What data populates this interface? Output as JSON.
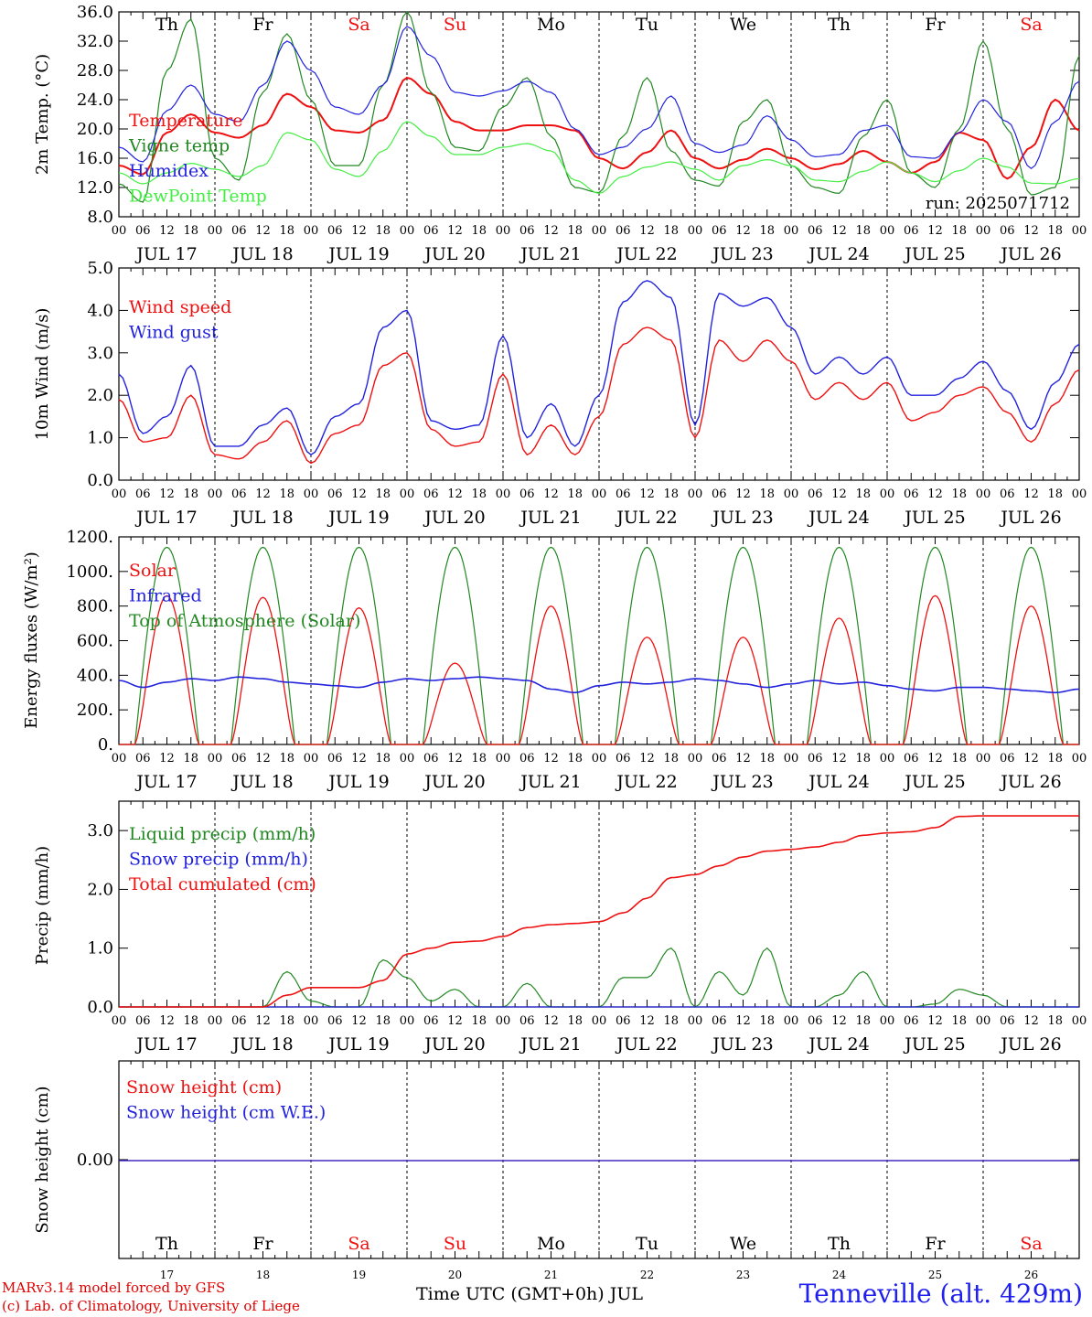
{
  "chart_data": [
    {
      "type": "line",
      "ylabel": "2m Temp. (°C)",
      "ylim": [
        8,
        36
      ],
      "yticks": [
        "8.0",
        "12.0",
        "16.0",
        "20.0",
        "24.0",
        "28.0",
        "32.0",
        "36.0"
      ],
      "annotation": "run: 2025071712",
      "series": [
        {
          "name": "Temperature",
          "color": "#ee1111",
          "step_hours": 6,
          "values": [
            15,
            13.8,
            19.5,
            22,
            19.5,
            18.8,
            20.5,
            24.8,
            23,
            19.8,
            19.5,
            21.2,
            27,
            24.8,
            21,
            19.8,
            19.8,
            20.5,
            20.5,
            19.8,
            16,
            14.6,
            16.8,
            19.8,
            16,
            14.6,
            15.8,
            17.3,
            16,
            14.5,
            15.2,
            17,
            15.5,
            14,
            15.5,
            19.5,
            18.5,
            13.2,
            17.5,
            24,
            19.8,
            16.8,
            16.8,
            21,
            17,
            14.2
          ]
        },
        {
          "name": "Vigne temp",
          "color": "#228822",
          "step_hours": 6,
          "values": [
            12.5,
            10,
            28,
            35,
            16,
            13,
            25,
            33,
            24,
            15,
            15,
            26,
            36,
            25,
            17.5,
            17,
            23,
            27,
            19,
            12,
            11.3,
            19,
            27,
            17,
            13,
            12.2,
            21,
            24,
            15,
            12,
            11.2,
            19,
            24,
            14,
            12,
            20,
            32,
            20,
            11,
            12,
            30,
            36,
            18,
            15,
            32,
            29,
            10
          ]
        },
        {
          "name": "Humidex",
          "color": "#2222dd",
          "step_hours": 6,
          "values": [
            17.5,
            15.5,
            22.5,
            26,
            22,
            21,
            26,
            32,
            28,
            23,
            22,
            26,
            34,
            30,
            25,
            24.5,
            25.2,
            26.5,
            25,
            20,
            16.5,
            17.5,
            20,
            24.5,
            18,
            16.8,
            17.8,
            21.8,
            18.5,
            16.2,
            16.5,
            19.8,
            20.5,
            16.2,
            16,
            19.5,
            24,
            21,
            14.6,
            21,
            26.5,
            24,
            19.5,
            19.5,
            24,
            20.5,
            15
          ]
        },
        {
          "name": "DewPoint Temp",
          "color": "#44ee44",
          "step_hours": 6,
          "values": [
            14,
            12.5,
            14,
            15.3,
            14.5,
            13.5,
            15,
            19.5,
            18.5,
            14.5,
            13.5,
            17,
            21,
            19,
            16.5,
            16.5,
            17.5,
            18,
            17,
            13,
            11.2,
            13.5,
            14.8,
            15.5,
            14.5,
            13,
            15,
            15.8,
            15,
            13,
            12.8,
            14.2,
            15.5,
            14,
            12.8,
            14.3,
            16,
            14.8,
            12.6,
            12.5,
            13.2,
            13,
            12.8,
            14.5,
            15,
            14,
            11
          ]
        }
      ]
    },
    {
      "type": "line",
      "ylabel": "10m Wind (m/s)",
      "ylim": [
        0,
        5
      ],
      "yticks": [
        "0.0",
        "1.0",
        "2.0",
        "3.0",
        "4.0",
        "5.0"
      ],
      "series": [
        {
          "name": "Wind speed",
          "color": "#ee1111",
          "step_hours": 6,
          "values": [
            1.9,
            0.9,
            1.0,
            2.0,
            0.6,
            0.5,
            0.9,
            1.4,
            0.4,
            1.1,
            1.3,
            2.7,
            3.0,
            1.2,
            0.8,
            0.9,
            2.5,
            0.6,
            1.3,
            0.6,
            1.5,
            3.2,
            3.6,
            3.3,
            1.0,
            3.3,
            2.8,
            3.3,
            2.8,
            1.9,
            2.3,
            1.9,
            2.3,
            1.4,
            1.6,
            2.0,
            2.2,
            1.6,
            0.9,
            1.8,
            2.6,
            2.3,
            1.8,
            2.5,
            2.9,
            1.6,
            1.2
          ]
        },
        {
          "name": "Wind gust",
          "color": "#2222dd",
          "step_hours": 6,
          "values": [
            2.5,
            1.1,
            1.5,
            2.7,
            0.8,
            0.8,
            1.3,
            1.7,
            0.6,
            1.5,
            1.8,
            3.6,
            4.0,
            1.4,
            1.2,
            1.3,
            3.4,
            1.0,
            1.8,
            0.8,
            2.0,
            4.2,
            4.7,
            4.3,
            1.3,
            4.4,
            4.1,
            4.3,
            3.6,
            2.5,
            2.9,
            2.5,
            2.9,
            2.0,
            2.0,
            2.4,
            2.8,
            2.1,
            1.2,
            2.3,
            3.2,
            3.1,
            2.6,
            3.2,
            3.6,
            2.1,
            1.6
          ]
        }
      ]
    },
    {
      "type": "line",
      "ylabel": "Energy fluxes (W/m²)",
      "ylim": [
        0,
        1200
      ],
      "yticks": [
        "0.",
        "200.",
        "400.",
        "600.",
        "800.",
        "1000.",
        "1200."
      ],
      "series": [
        {
          "name": "Solar",
          "color": "#ee1111",
          "peak_values": [
            860,
            850,
            790,
            470,
            800,
            620,
            620,
            730,
            860,
            800
          ]
        },
        {
          "name": "Infrared",
          "color": "#2222dd",
          "step_hours": 6,
          "values": [
            370,
            330,
            360,
            380,
            370,
            390,
            380,
            360,
            350,
            340,
            330,
            360,
            380,
            370,
            380,
            390,
            380,
            370,
            320,
            300,
            340,
            360,
            350,
            360,
            380,
            370,
            350,
            330,
            350,
            370,
            350,
            360,
            340,
            320,
            310,
            330,
            330,
            320,
            310,
            300,
            320,
            330,
            330,
            340,
            380,
            350,
            300
          ]
        },
        {
          "name": "Top of Atmosphere (Solar)",
          "color": "#228822",
          "peak": 1140,
          "sunrise_hour": 4,
          "sunset_hour": 20
        }
      ]
    },
    {
      "type": "line",
      "ylabel": "Precip (mm/h)",
      "ylim": [
        0,
        3.5
      ],
      "yticks": [
        "0.0",
        "1.0",
        "2.0",
        "3.0"
      ],
      "series": [
        {
          "name": "Liquid precip (mm/h)",
          "color": "#228822",
          "step_hours": 6,
          "values": [
            0,
            0,
            0,
            0,
            0,
            0,
            0,
            0.6,
            0.1,
            0,
            0,
            0.8,
            0.5,
            0.1,
            0.3,
            0,
            0,
            0.4,
            0,
            0,
            0,
            0.5,
            0.5,
            1.0,
            0,
            0.6,
            0.2,
            1.0,
            0,
            0,
            0.2,
            0.6,
            0,
            0,
            0.05,
            0.3,
            0.2,
            0,
            0,
            0,
            0,
            0,
            0,
            0,
            0,
            0,
            0
          ]
        },
        {
          "name": "Snow precip (mm/h)",
          "color": "#2222dd",
          "step_hours": 6,
          "values": [
            0,
            0,
            0,
            0,
            0,
            0,
            0,
            0,
            0,
            0,
            0,
            0,
            0,
            0,
            0,
            0,
            0,
            0,
            0,
            0,
            0,
            0,
            0,
            0,
            0,
            0,
            0,
            0,
            0,
            0,
            0,
            0,
            0,
            0,
            0,
            0,
            0,
            0,
            0,
            0,
            0,
            0,
            0,
            0,
            0,
            0,
            0
          ]
        },
        {
          "name": "Total cumulated (cm)",
          "color": "#ee1111",
          "step_hours": 6,
          "values": [
            0,
            0,
            0,
            0,
            0,
            0,
            0,
            0.2,
            0.33,
            0.33,
            0.33,
            0.45,
            0.9,
            1.0,
            1.1,
            1.12,
            1.2,
            1.35,
            1.4,
            1.42,
            1.45,
            1.6,
            1.85,
            2.2,
            2.25,
            2.4,
            2.55,
            2.65,
            2.68,
            2.72,
            2.8,
            2.92,
            2.96,
            2.98,
            3.05,
            3.24,
            3.25,
            3.25,
            3.25,
            3.25,
            3.25,
            3.25,
            3.25,
            3.25,
            3.25,
            3.25,
            3.25
          ]
        }
      ]
    },
    {
      "type": "line",
      "ylabel": "Snow height (cm)",
      "yticks": [
        "0.00"
      ],
      "series": [
        {
          "name": "Snow height (cm)",
          "color": "#ee1111",
          "values": [
            0,
            0
          ]
        },
        {
          "name": "Snow height (cm W.E.)",
          "color": "#2222dd",
          "values": [
            0,
            0
          ]
        }
      ]
    }
  ],
  "days": {
    "weekday": [
      "Th",
      "Fr",
      "Sa",
      "Su",
      "Mo",
      "Tu",
      "We",
      "Th",
      "Fr",
      "Sa"
    ],
    "weekend": [
      false,
      false,
      true,
      true,
      false,
      false,
      false,
      false,
      false,
      true
    ],
    "dates": [
      "JUL 17",
      "JUL 18",
      "JUL 19",
      "JUL 20",
      "JUL 21",
      "JUL 22",
      "JUL 23",
      "JUL 24",
      "JUL 25",
      "JUL 26"
    ],
    "numbers": [
      "17",
      "18",
      "19",
      "20",
      "21",
      "22",
      "23",
      "24",
      "25",
      "26"
    ],
    "hour_ticks": [
      "00",
      "06",
      "12",
      "18"
    ],
    "end_tick": "00"
  },
  "colors": {
    "weekend": "#ee1111",
    "axis": "#000000"
  },
  "footer": {
    "credit_line1": "MARv3.14 model forced by GFS",
    "credit_line2": "(c) Lab. of Climatology, University of Liege",
    "xaxis_title": "Time UTC (GMT+0h) JUL",
    "station": "Tenneville (alt. 429m)"
  }
}
